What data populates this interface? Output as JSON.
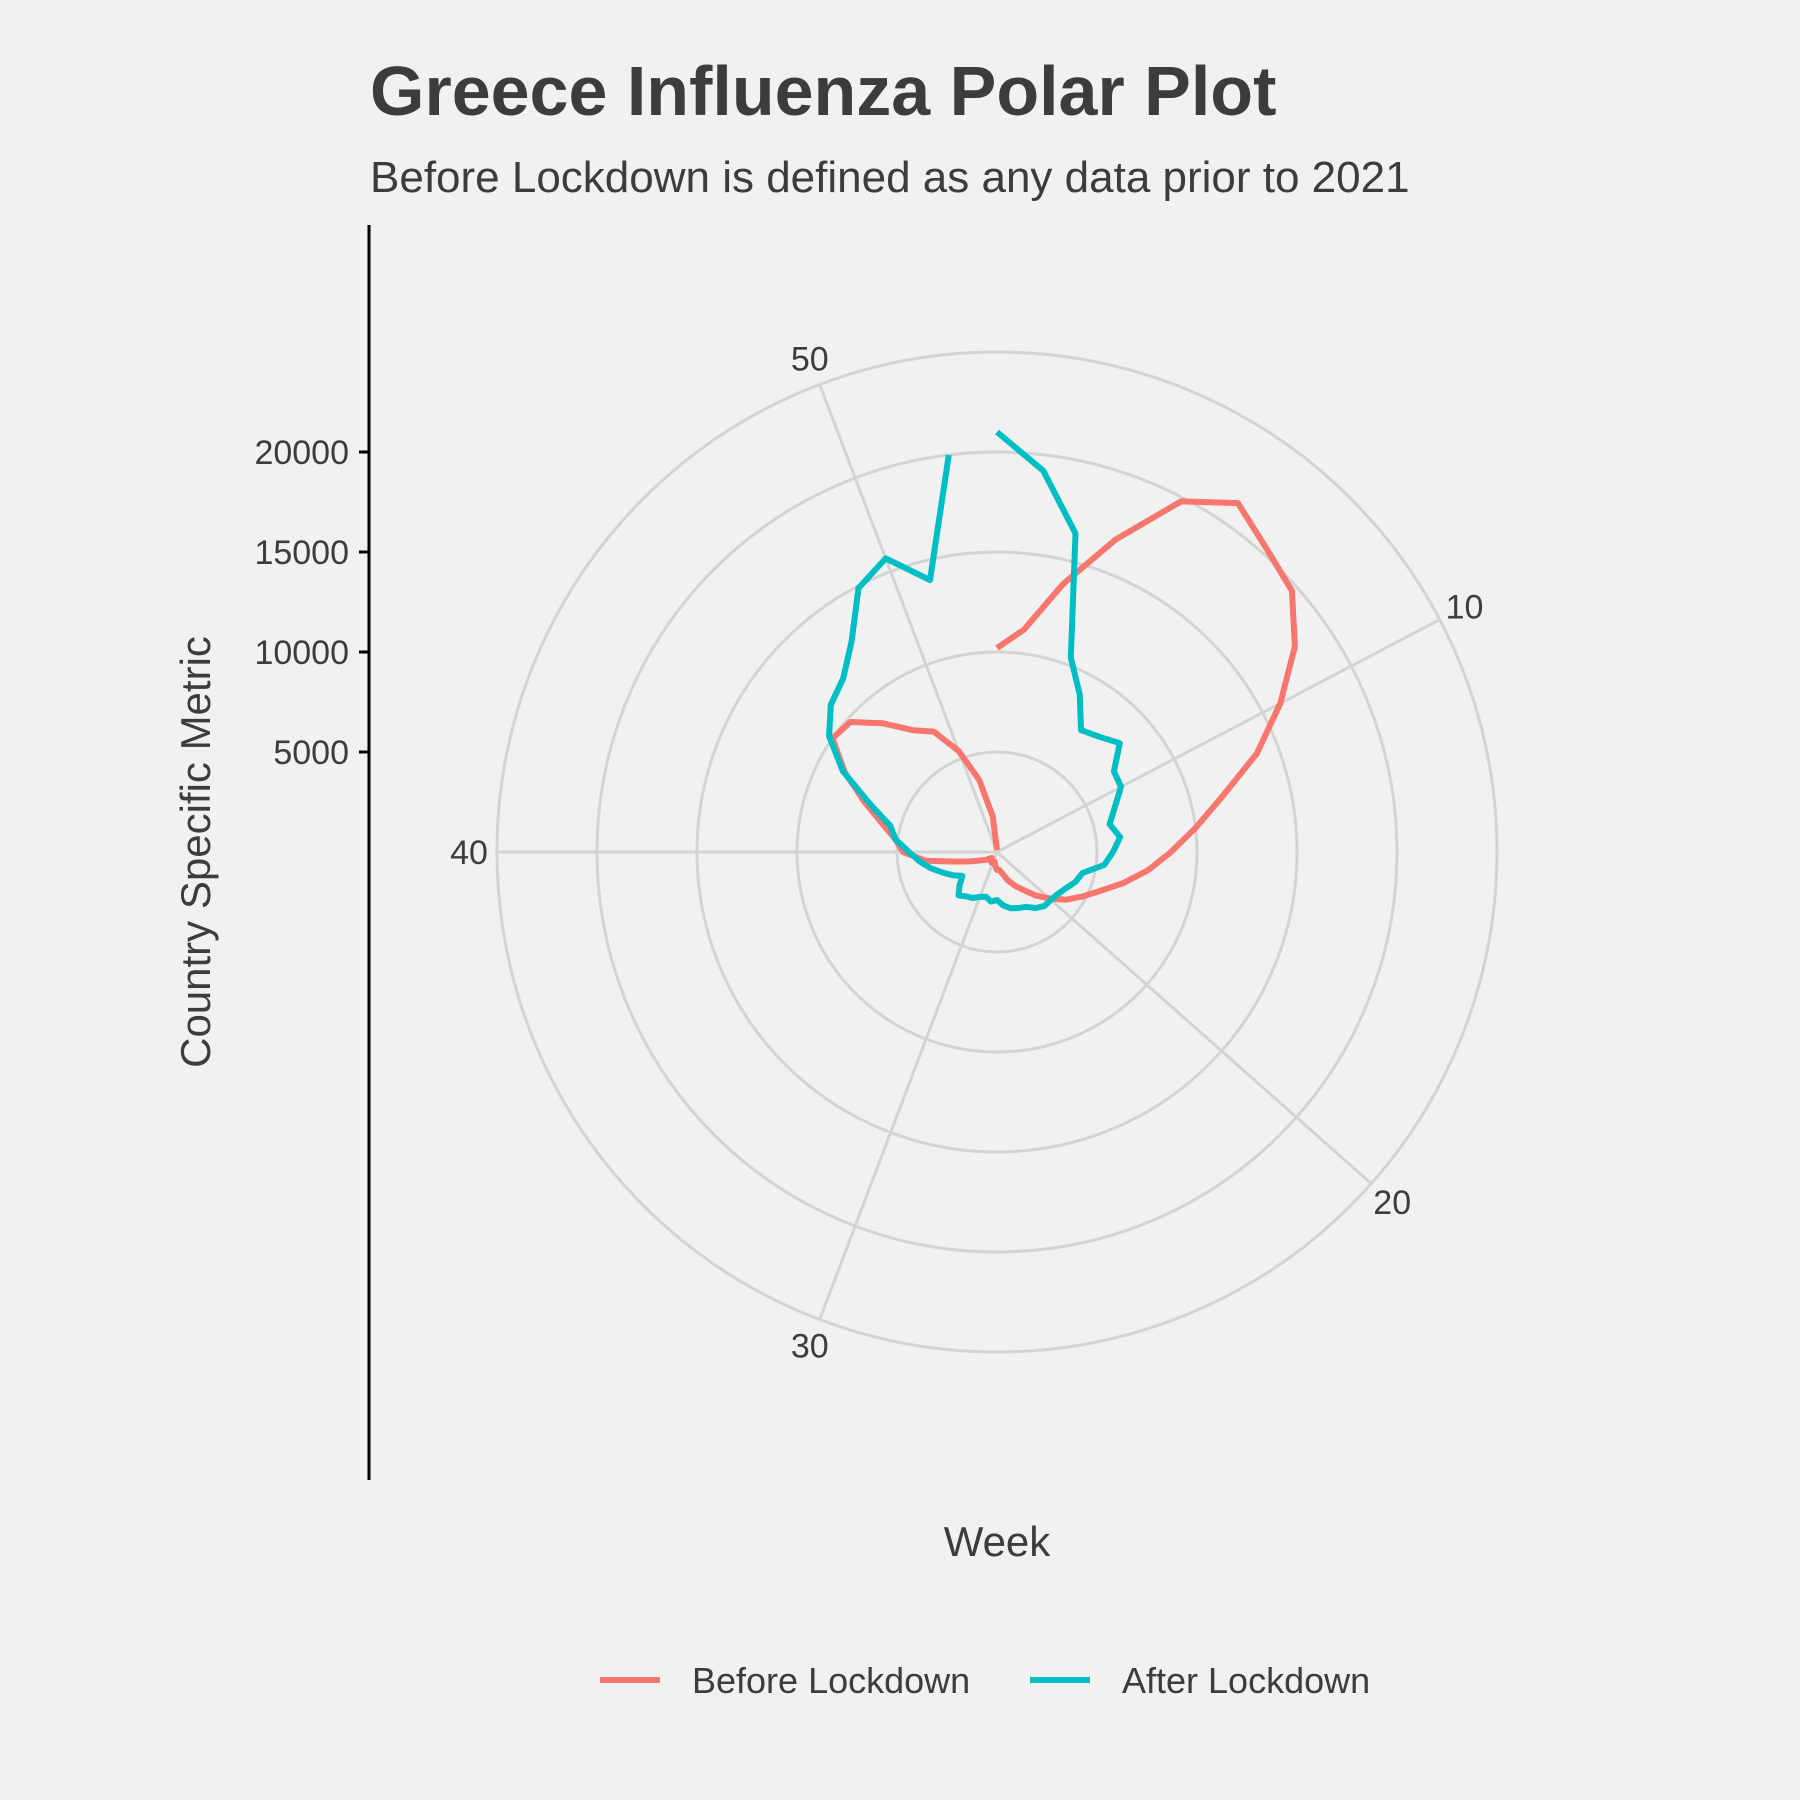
{
  "chart_data": {
    "type": "line",
    "coordinate_system": "polar",
    "title": "Greece Influenza Polar Plot",
    "subtitle": "Before Lockdown is defined as any data prior to 2021",
    "xlabel": "Week",
    "ylabel": "Country Specific Metric",
    "x_ticks": [
      10,
      20,
      30,
      40,
      50
    ],
    "y_ticks": [
      5000,
      10000,
      15000,
      20000
    ],
    "xlim": [
      1,
      53
    ],
    "ylim": [
      0,
      20000
    ],
    "grid": true,
    "legend_position": "bottom",
    "series": [
      {
        "name": "Before Lockdown",
        "color": "#f8766d",
        "x": [
          1,
          2,
          3,
          4,
          5,
          6,
          7,
          8,
          9,
          10,
          11,
          12,
          13,
          14,
          15,
          16,
          17,
          18,
          19,
          20,
          21,
          22,
          23,
          24,
          25,
          26,
          27,
          28,
          29,
          30,
          31,
          32,
          33,
          34,
          35,
          36,
          37,
          38,
          39,
          40,
          41,
          42,
          43,
          44,
          45,
          46,
          47,
          48,
          49,
          50,
          51,
          52,
          53
        ],
        "y": [
          10200,
          11200,
          13800,
          16700,
          19800,
          21200,
          20300,
          19700,
          18100,
          16000,
          13900,
          11600,
          10000,
          8700,
          7600,
          6500,
          5500,
          4800,
          4200,
          3500,
          2900,
          2300,
          1900,
          1500,
          1100,
          900,
          900,
          700,
          500,
          500,
          600,
          500,
          400,
          500,
          700,
          900,
          1300,
          2000,
          3600,
          4700,
          5100,
          5900,
          7100,
          8600,
          10000,
          9800,
          8600,
          7400,
          6800,
          5400,
          3700,
          1800,
          100
        ]
      },
      {
        "name": "After Lockdown",
        "color": "#00bfc4",
        "x": [
          1,
          2,
          3,
          4,
          5,
          6,
          7,
          8,
          9,
          10,
          11,
          12,
          13,
          14,
          15,
          16,
          17,
          18,
          19,
          20,
          21,
          22,
          23,
          24,
          25,
          26,
          27,
          28,
          29,
          30,
          31,
          32,
          33,
          34,
          35,
          36,
          37,
          38,
          39,
          40,
          41,
          42,
          43,
          44,
          45,
          46,
          47,
          48,
          49,
          50,
          51,
          52
        ],
        "y": [
          21000,
          19200,
          16400,
          10400,
          8900,
          7400,
          7700,
          8200,
          7100,
          7000,
          6300,
          5800,
          6200,
          5800,
          5400,
          4400,
          4200,
          3900,
          3700,
          3600,
          3600,
          3400,
          3100,
          3000,
          2900,
          2700,
          2400,
          2500,
          2300,
          2400,
          2600,
          2700,
          2900,
          2500,
          2100,
          2500,
          2900,
          3400,
          3900,
          4400,
          5100,
          5500,
          6800,
          8700,
          10200,
          11100,
          11600,
          12800,
          14900,
          15700,
          14000,
          20000
        ]
      }
    ]
  }
}
